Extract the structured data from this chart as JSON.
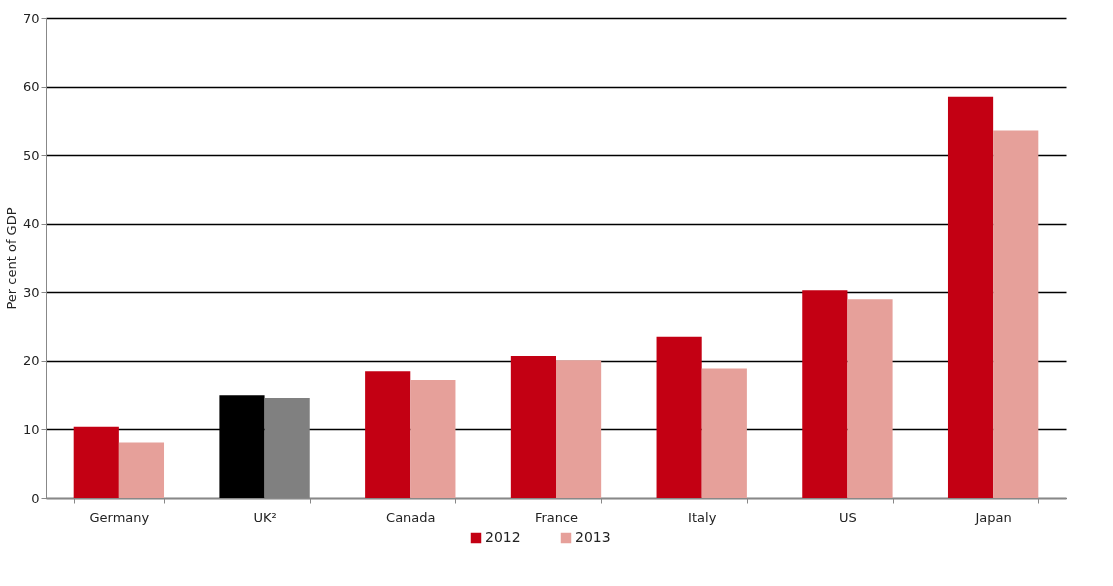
{
  "chart_data": {
    "type": "bar",
    "ylabel": "Per cent of GDP",
    "categories": [
      "Germany",
      "UK²",
      "Canada",
      "France",
      "Italy",
      "US",
      "Japan"
    ],
    "series": [
      {
        "name": "2012",
        "color": "#c30013",
        "colors": [
          "#c30013",
          "#000000",
          "#c30013",
          "#c30013",
          "#c30013",
          "#c30013",
          "#c30013"
        ],
        "values": [
          10.4,
          15.0,
          18.5,
          20.7,
          23.5,
          30.3,
          58.5
        ]
      },
      {
        "name": "2013",
        "color": "#e6a09a",
        "colors": [
          "#e6a09a",
          "#808080",
          "#e6a09a",
          "#e6a09a",
          "#e6a09a",
          "#e6a09a",
          "#e6a09a"
        ],
        "values": [
          8.1,
          14.6,
          17.2,
          20.1,
          18.9,
          29.0,
          53.6
        ]
      }
    ],
    "ylim": [
      0,
      70
    ],
    "yticks": [
      0,
      10,
      20,
      30,
      40,
      50,
      60,
      70
    ],
    "grid": "y",
    "legend": "bottom"
  }
}
